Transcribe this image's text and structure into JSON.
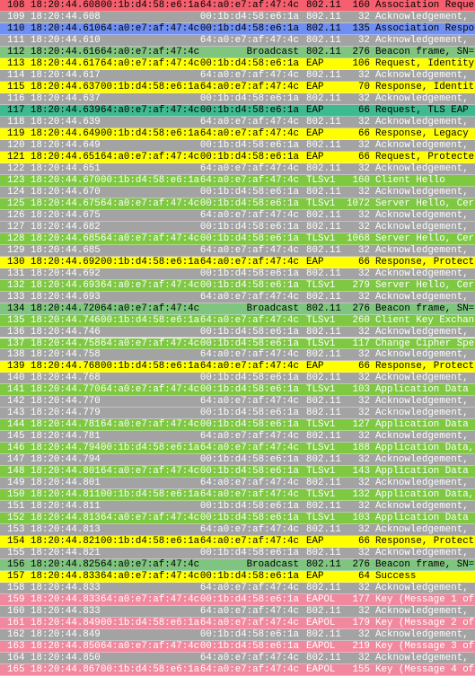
{
  "styles": {
    "red": {
      "bg": "#f55f6e",
      "fg": "#000000"
    },
    "gray": {
      "bg": "#a3a3a3",
      "fg": "#ffffff"
    },
    "blue": {
      "bg": "#6f8ff2",
      "fg": "#000000"
    },
    "beacon": {
      "bg": "#7fc47f",
      "fg": "#000000"
    },
    "eap": {
      "bg": "#ffff00",
      "fg": "#000000"
    },
    "teal": {
      "bg": "#3dbb8f",
      "fg": "#000000"
    },
    "tls": {
      "bg": "#7ec842",
      "fg": "#ffffff"
    },
    "eapol": {
      "bg": "#f2889e",
      "fg": "#ffffff"
    }
  },
  "rows": [
    {
      "no": "108",
      "time": "18:20:44.608",
      "source": "00:1b:d4:58:e6:1a",
      "destination": "64:a0:e7:af:47:4c",
      "protocol": "802.11",
      "length": "160",
      "info": "Association Reque",
      "style": "red"
    },
    {
      "no": "109",
      "time": "18:20:44.608",
      "destination": "00:1b:d4:58:e6:1a",
      "protocol": "802.11",
      "length": "32",
      "info": "Acknowledgement,",
      "style": "gray"
    },
    {
      "no": "110",
      "time": "18:20:44.610",
      "source": "64:a0:e7:af:47:4c",
      "destination": "00:1b:d4:58:e6:1a",
      "protocol": "802.11",
      "length": "135",
      "info": "Association Respo",
      "style": "blue"
    },
    {
      "no": "111",
      "time": "18:20:44.610",
      "destination": "64:a0:e7:af:47:4c",
      "protocol": "802.11",
      "length": "32",
      "info": "Acknowledgement,",
      "style": "gray"
    },
    {
      "no": "112",
      "time": "18:20:44.616",
      "source": "64:a0:e7:af:47:4c",
      "destination": "Broadcast",
      "protocol": "802.11",
      "length": "276",
      "info": "Beacon frame, SN=",
      "style": "beacon"
    },
    {
      "no": "113",
      "time": "18:20:44.617",
      "source": "64:a0:e7:af:47:4c",
      "destination": "00:1b:d4:58:e6:1a",
      "protocol": "EAP",
      "length": "106",
      "info": "Request, Identity",
      "style": "eap"
    },
    {
      "no": "114",
      "time": "18:20:44.617",
      "destination": "64:a0:e7:af:47:4c",
      "protocol": "802.11",
      "length": "32",
      "info": "Acknowledgement,",
      "style": "gray"
    },
    {
      "no": "115",
      "time": "18:20:44.637",
      "source": "00:1b:d4:58:e6:1a",
      "destination": "64:a0:e7:af:47:4c",
      "protocol": "EAP",
      "length": "70",
      "info": "Response, Identit",
      "style": "eap"
    },
    {
      "no": "116",
      "time": "18:20:44.637",
      "destination": "00:1b:d4:58:e6:1a",
      "protocol": "802.11",
      "length": "32",
      "info": "Acknowledgement,",
      "style": "gray"
    },
    {
      "no": "117",
      "time": "18:20:44.639",
      "source": "64:a0:e7:af:47:4c",
      "destination": "00:1b:d4:58:e6:1a",
      "protocol": "EAP",
      "length": "66",
      "info": "Request, TLS EAP",
      "style": "teal"
    },
    {
      "no": "118",
      "time": "18:20:44.639",
      "destination": "64:a0:e7:af:47:4c",
      "protocol": "802.11",
      "length": "32",
      "info": "Acknowledgement,",
      "style": "gray"
    },
    {
      "no": "119",
      "time": "18:20:44.649",
      "source": "00:1b:d4:58:e6:1a",
      "destination": "64:a0:e7:af:47:4c",
      "protocol": "EAP",
      "length": "66",
      "info": "Response, Legacy",
      "style": "eap"
    },
    {
      "no": "120",
      "time": "18:20:44.649",
      "destination": "00:1b:d4:58:e6:1a",
      "protocol": "802.11",
      "length": "32",
      "info": "Acknowledgement,",
      "style": "gray"
    },
    {
      "no": "121",
      "time": "18:20:44.651",
      "source": "64:a0:e7:af:47:4c",
      "destination": "00:1b:d4:58:e6:1a",
      "protocol": "EAP",
      "length": "66",
      "info": "Request, Protecte",
      "style": "eap"
    },
    {
      "no": "122",
      "time": "18:20:44.651",
      "destination": "64:a0:e7:af:47:4c",
      "protocol": "802.11",
      "length": "32",
      "info": "Acknowledgement,",
      "style": "gray"
    },
    {
      "no": "123",
      "time": "18:20:44.670",
      "source": "00:1b:d4:58:e6:1a",
      "destination": "64:a0:e7:af:47:4c",
      "protocol": "TLSv1",
      "length": "160",
      "info": "Client Hello",
      "style": "tls"
    },
    {
      "no": "124",
      "time": "18:20:44.670",
      "destination": "00:1b:d4:58:e6:1a",
      "protocol": "802.11",
      "length": "32",
      "info": "Acknowledgement,",
      "style": "gray"
    },
    {
      "no": "125",
      "time": "18:20:44.675",
      "source": "64:a0:e7:af:47:4c",
      "destination": "00:1b:d4:58:e6:1a",
      "protocol": "TLSv1",
      "length": "1072",
      "info": "Server Hello, Cer",
      "style": "tls"
    },
    {
      "no": "126",
      "time": "18:20:44.675",
      "destination": "64:a0:e7:af:47:4c",
      "protocol": "802.11",
      "length": "32",
      "info": "Acknowledgement,",
      "style": "gray"
    },
    {
      "no": "127",
      "time": "18:20:44.682",
      "destination": "00:1b:d4:58:e6:1a",
      "protocol": "802.11",
      "length": "32",
      "info": "Acknowledgement,",
      "style": "gray"
    },
    {
      "no": "128",
      "time": "18:20:44.685",
      "source": "64:a0:e7:af:47:4c",
      "destination": "00:1b:d4:58:e6:1a",
      "protocol": "TLSv1",
      "length": "1068",
      "info": "Server Hello, Cer",
      "style": "tls"
    },
    {
      "no": "129",
      "time": "18:20:44.685",
      "destination": "64:a0:e7:af:47:4c",
      "protocol": "802.11",
      "length": "32",
      "info": "Acknowledgement,",
      "style": "gray"
    },
    {
      "no": "130",
      "time": "18:20:44.692",
      "source": "00:1b:d4:58:e6:1a",
      "destination": "64:a0:e7:af:47:4c",
      "protocol": "EAP",
      "length": "66",
      "info": "Response, Protect",
      "style": "eap"
    },
    {
      "no": "131",
      "time": "18:20:44.692",
      "destination": "00:1b:d4:58:e6:1a",
      "protocol": "802.11",
      "length": "32",
      "info": "Acknowledgement,",
      "style": "gray"
    },
    {
      "no": "132",
      "time": "18:20:44.693",
      "source": "64:a0:e7:af:47:4c",
      "destination": "00:1b:d4:58:e6:1a",
      "protocol": "TLSv1",
      "length": "279",
      "info": "Server Hello, Cer",
      "style": "tls"
    },
    {
      "no": "133",
      "time": "18:20:44.693",
      "destination": "64:a0:e7:af:47:4c",
      "protocol": "802.11",
      "length": "32",
      "info": "Acknowledgement,",
      "style": "gray"
    },
    {
      "no": "134",
      "time": "18:20:44.720",
      "source": "64:a0:e7:af:47:4c",
      "destination": "Broadcast",
      "protocol": "802.11",
      "length": "276",
      "info": "Beacon frame, SN=",
      "style": "beacon"
    },
    {
      "no": "135",
      "time": "18:20:44.746",
      "source": "00:1b:d4:58:e6:1a",
      "destination": "64:a0:e7:af:47:4c",
      "protocol": "TLSv1",
      "length": "260",
      "info": "Client Key Exchan",
      "style": "tls"
    },
    {
      "no": "136",
      "time": "18:20:44.746",
      "destination": "00:1b:d4:58:e6:1a",
      "protocol": "802.11",
      "length": "32",
      "info": "Acknowledgement,",
      "style": "gray"
    },
    {
      "no": "137",
      "time": "18:20:44.758",
      "source": "64:a0:e7:af:47:4c",
      "destination": "00:1b:d4:58:e6:1a",
      "protocol": "TLSv1",
      "length": "117",
      "info": "Change Cipher Spe",
      "style": "tls"
    },
    {
      "no": "138",
      "time": "18:20:44.758",
      "destination": "64:a0:e7:af:47:4c",
      "protocol": "802.11",
      "length": "32",
      "info": "Acknowledgement,",
      "style": "gray"
    },
    {
      "no": "139",
      "time": "18:20:44.768",
      "source": "00:1b:d4:58:e6:1a",
      "destination": "64:a0:e7:af:47:4c",
      "protocol": "EAP",
      "length": "66",
      "info": "Response, Protect",
      "style": "eap"
    },
    {
      "no": "140",
      "time": "18:20:44.768",
      "destination": "00:1b:d4:58:e6:1a",
      "protocol": "802.11",
      "length": "32",
      "info": "Acknowledgement,",
      "style": "gray"
    },
    {
      "no": "141",
      "time": "18:20:44.770",
      "source": "64:a0:e7:af:47:4c",
      "destination": "00:1b:d4:58:e6:1a",
      "protocol": "TLSv1",
      "length": "103",
      "info": "Application Data",
      "style": "tls"
    },
    {
      "no": "142",
      "time": "18:20:44.770",
      "destination": "64:a0:e7:af:47:4c",
      "protocol": "802.11",
      "length": "32",
      "info": "Acknowledgement,",
      "style": "gray"
    },
    {
      "no": "143",
      "time": "18:20:44.779",
      "destination": "00:1b:d4:58:e6:1a",
      "protocol": "802.11",
      "length": "32",
      "info": "Acknowledgement,",
      "style": "gray"
    },
    {
      "no": "144",
      "time": "18:20:44.781",
      "source": "64:a0:e7:af:47:4c",
      "destination": "00:1b:d4:58:e6:1a",
      "protocol": "TLSv1",
      "length": "127",
      "info": "Application Data",
      "style": "tls"
    },
    {
      "no": "145",
      "time": "18:20:44.781",
      "destination": "64:a0:e7:af:47:4c",
      "protocol": "802.11",
      "length": "32",
      "info": "Acknowledgement,",
      "style": "gray"
    },
    {
      "no": "146",
      "time": "18:20:44.794",
      "source": "00:1b:d4:58:e6:1a",
      "destination": "64:a0:e7:af:47:4c",
      "protocol": "TLSv1",
      "length": "188",
      "info": "Application Data,",
      "style": "tls"
    },
    {
      "no": "147",
      "time": "18:20:44.794",
      "destination": "00:1b:d4:58:e6:1a",
      "protocol": "802.11",
      "length": "32",
      "info": "Acknowledgement,",
      "style": "gray"
    },
    {
      "no": "148",
      "time": "18:20:44.801",
      "source": "64:a0:e7:af:47:4c",
      "destination": "00:1b:d4:58:e6:1a",
      "protocol": "TLSv1",
      "length": "143",
      "info": "Application Data",
      "style": "tls"
    },
    {
      "no": "149",
      "time": "18:20:44.801",
      "destination": "64:a0:e7:af:47:4c",
      "protocol": "802.11",
      "length": "32",
      "info": "Acknowledgement,",
      "style": "gray"
    },
    {
      "no": "150",
      "time": "18:20:44.811",
      "source": "00:1b:d4:58:e6:1a",
      "destination": "64:a0:e7:af:47:4c",
      "protocol": "TLSv1",
      "length": "132",
      "info": "Application Data,",
      "style": "tls"
    },
    {
      "no": "151",
      "time": "18:20:44.811",
      "destination": "00:1b:d4:58:e6:1a",
      "protocol": "802.11",
      "length": "32",
      "info": "Acknowledgement,",
      "style": "gray"
    },
    {
      "no": "152",
      "time": "18:20:44.813",
      "source": "64:a0:e7:af:47:4c",
      "destination": "00:1b:d4:58:e6:1a",
      "protocol": "TLSv1",
      "length": "103",
      "info": "Application Data",
      "style": "tls"
    },
    {
      "no": "153",
      "time": "18:20:44.813",
      "destination": "64:a0:e7:af:47:4c",
      "protocol": "802.11",
      "length": "32",
      "info": "Acknowledgement,",
      "style": "gray"
    },
    {
      "no": "154",
      "time": "18:20:44.821",
      "source": "00:1b:d4:58:e6:1a",
      "destination": "64:a0:e7:af:47:4c",
      "protocol": "EAP",
      "length": "66",
      "info": "Response, Protect",
      "style": "eap"
    },
    {
      "no": "155",
      "time": "18:20:44.821",
      "destination": "00:1b:d4:58:e6:1a",
      "protocol": "802.11",
      "length": "32",
      "info": "Acknowledgement,",
      "style": "gray"
    },
    {
      "no": "156",
      "time": "18:20:44.825",
      "source": "64:a0:e7:af:47:4c",
      "destination": "Broadcast",
      "protocol": "802.11",
      "length": "276",
      "info": "Beacon frame, SN=",
      "style": "beacon"
    },
    {
      "no": "157",
      "time": "18:20:44.833",
      "source": "64:a0:e7:af:47:4c",
      "destination": "00:1b:d4:58:e6:1a",
      "protocol": "EAP",
      "length": "64",
      "info": "Success",
      "style": "eap"
    },
    {
      "no": "158",
      "time": "18:20:44.833",
      "destination": "64:a0:e7:af:47:4c",
      "protocol": "802.11",
      "length": "32",
      "info": "Acknowledgement,",
      "style": "gray"
    },
    {
      "no": "159",
      "time": "18:20:44.833",
      "source": "64:a0:e7:af:47:4c",
      "destination": "00:1b:d4:58:e6:1a",
      "protocol": "EAPOL",
      "length": "177",
      "info": "Key (Message 1 of",
      "style": "eapol"
    },
    {
      "no": "160",
      "time": "18:20:44.833",
      "destination": "64:a0:e7:af:47:4c",
      "protocol": "802.11",
      "length": "32",
      "info": "Acknowledgement,",
      "style": "gray"
    },
    {
      "no": "161",
      "time": "18:20:44.849",
      "source": "00:1b:d4:58:e6:1a",
      "destination": "64:a0:e7:af:47:4c",
      "protocol": "EAPOL",
      "length": "179",
      "info": "Key (Message 2 of",
      "style": "eapol"
    },
    {
      "no": "162",
      "time": "18:20:44.849",
      "destination": "00:1b:d4:58:e6:1a",
      "protocol": "802.11",
      "length": "32",
      "info": "Acknowledgement,",
      "style": "gray"
    },
    {
      "no": "163",
      "time": "18:20:44.850",
      "source": "64:a0:e7:af:47:4c",
      "destination": "00:1b:d4:58:e6:1a",
      "protocol": "EAPOL",
      "length": "219",
      "info": "Key (Message 3 of",
      "style": "eapol"
    },
    {
      "no": "164",
      "time": "18:20:44.850",
      "destination": "64:a0:e7:af:47:4c",
      "protocol": "802.11",
      "length": "32",
      "info": "Acknowledgement,",
      "style": "gray"
    },
    {
      "no": "165",
      "time": "18:20:44.867",
      "source": "00:1b:d4:58:e6:1a",
      "destination": "64:a0:e7:af:47:4c",
      "protocol": "EAPOL",
      "length": "155",
      "info": "Key (Message 4 of",
      "style": "eapol"
    }
  ]
}
